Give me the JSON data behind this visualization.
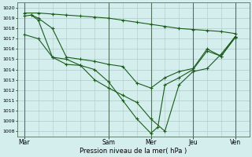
{
  "xlabel": "Pression niveau de la mer( hPa )",
  "ylim": [
    1007.5,
    1020.5
  ],
  "yticks": [
    1008,
    1009,
    1010,
    1011,
    1012,
    1013,
    1014,
    1015,
    1016,
    1017,
    1018,
    1019,
    1020
  ],
  "background_color": "#d4eeee",
  "grid_color": "#b0c8c8",
  "line_color": "#1a5c1a",
  "marker_color": "#1a5c1a",
  "x_day_labels": [
    "Mar",
    "Sam",
    "Mer",
    "Jeu",
    "Ven"
  ],
  "x_day_positions": [
    0,
    36,
    54,
    72,
    90
  ],
  "xlim": [
    -3,
    96
  ],
  "series1": {
    "x": [
      0,
      6,
      12,
      18,
      24,
      30,
      36,
      42,
      48,
      54,
      60,
      66,
      72,
      78,
      84,
      90
    ],
    "y": [
      1019.5,
      1019.5,
      1019.4,
      1019.3,
      1019.2,
      1019.1,
      1019.0,
      1018.8,
      1018.6,
      1018.4,
      1018.2,
      1018.0,
      1017.9,
      1017.8,
      1017.7,
      1017.5
    ]
  },
  "series2": {
    "x": [
      0,
      3,
      6,
      12,
      18,
      24,
      30,
      36,
      42,
      48,
      54,
      60,
      66,
      72,
      78,
      84,
      90
    ],
    "y": [
      1019.2,
      1019.3,
      1019.0,
      1018.0,
      1015.2,
      1015.0,
      1014.8,
      1014.5,
      1014.3,
      1012.7,
      1012.2,
      1013.2,
      1013.8,
      1014.1,
      1016.0,
      1015.3,
      1017.2
    ]
  },
  "series3": {
    "x": [
      0,
      6,
      12,
      18,
      24,
      30,
      36,
      42,
      48,
      54,
      60,
      66,
      72,
      78,
      84,
      90
    ],
    "y": [
      1017.4,
      1017.0,
      1015.2,
      1015.0,
      1014.4,
      1013.0,
      1012.2,
      1011.5,
      1010.8,
      1009.2,
      1008.0,
      1012.5,
      1013.8,
      1014.1,
      1015.5,
      1017.2
    ]
  },
  "series4": {
    "x": [
      3,
      6,
      12,
      18,
      24,
      30,
      36,
      42,
      48,
      54,
      57,
      60,
      66,
      72,
      78,
      84,
      90
    ],
    "y": [
      1019.3,
      1018.8,
      1015.2,
      1014.5,
      1014.4,
      1014.0,
      1012.8,
      1011.0,
      1009.2,
      1007.8,
      1008.4,
      1012.5,
      1013.2,
      1014.0,
      1015.8,
      1015.3,
      1017.1
    ]
  }
}
